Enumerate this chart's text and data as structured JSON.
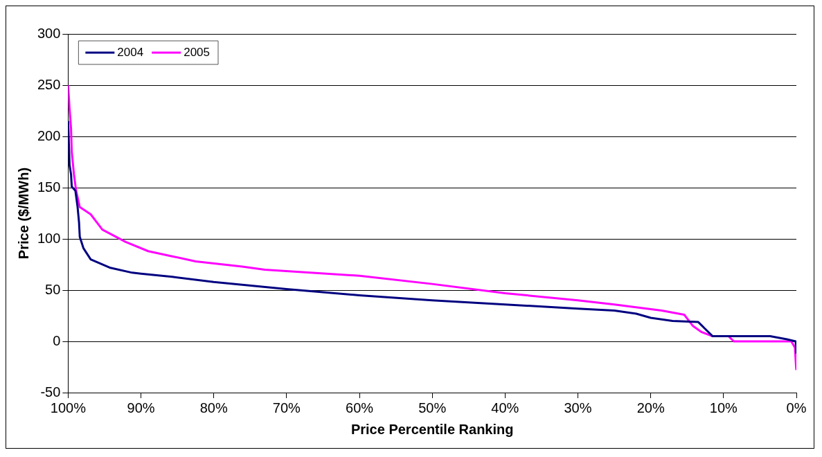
{
  "chart_data": {
    "type": "line",
    "xlabel": "Price Percentile Ranking",
    "ylabel": "Price ($/MWh)",
    "xlim": [
      100,
      0
    ],
    "xticks": [
      {
        "value": 100,
        "label": "100%"
      },
      {
        "value": 90,
        "label": "90%"
      },
      {
        "value": 80,
        "label": "80%"
      },
      {
        "value": 70,
        "label": "70%"
      },
      {
        "value": 60,
        "label": "60%"
      },
      {
        "value": 50,
        "label": "50%"
      },
      {
        "value": 40,
        "label": "40%"
      },
      {
        "value": 30,
        "label": "30%"
      },
      {
        "value": 20,
        "label": "20%"
      },
      {
        "value": 10,
        "label": "10%"
      },
      {
        "value": 0,
        "label": "0%"
      }
    ],
    "ylim": [
      -50,
      300
    ],
    "yticks": [
      -50,
      0,
      50,
      100,
      150,
      200,
      250,
      300
    ],
    "grid": "y",
    "legend": "top left",
    "marker": "none",
    "line_style": "solid",
    "series": [
      {
        "name": "2004",
        "color": "#000080",
        "x": [
          100,
          99.8,
          99.6,
          99.5,
          99.0,
          98.7,
          98.5,
          98.4,
          97.9,
          96.9,
          94.3,
          91.2,
          90,
          85.7,
          80,
          70,
          60,
          50,
          40,
          30,
          25,
          22,
          20,
          17,
          13.5,
          12.5,
          11.5,
          3.6,
          1.3,
          0.1,
          0
        ],
        "values": [
          215,
          172,
          163,
          151,
          147,
          131,
          116,
          102,
          91,
          80,
          72,
          67,
          66,
          63,
          58,
          51,
          45,
          40,
          36,
          32,
          30,
          27,
          23,
          20,
          19,
          12,
          5,
          5,
          2,
          0,
          -12
        ]
      },
      {
        "name": "2005",
        "color": "#ff00ff",
        "x": [
          100,
          99.8,
          99.6,
          99.5,
          99.2,
          98.9,
          98.4,
          96.9,
          95.3,
          92.1,
          89,
          85.7,
          82.5,
          76.1,
          73,
          60,
          50,
          40,
          30,
          25,
          18.5,
          15.4,
          14.2,
          13,
          11.5,
          9.3,
          8.6,
          0.7,
          0.2,
          0.05,
          0
        ],
        "values": [
          250,
          227,
          208,
          185,
          163,
          147,
          131,
          124,
          109,
          97,
          88,
          83,
          78,
          73,
          70,
          64,
          56,
          47,
          40,
          36,
          30,
          26,
          15,
          9,
          5,
          5,
          0,
          0,
          -6,
          -24,
          -28
        ]
      }
    ]
  }
}
